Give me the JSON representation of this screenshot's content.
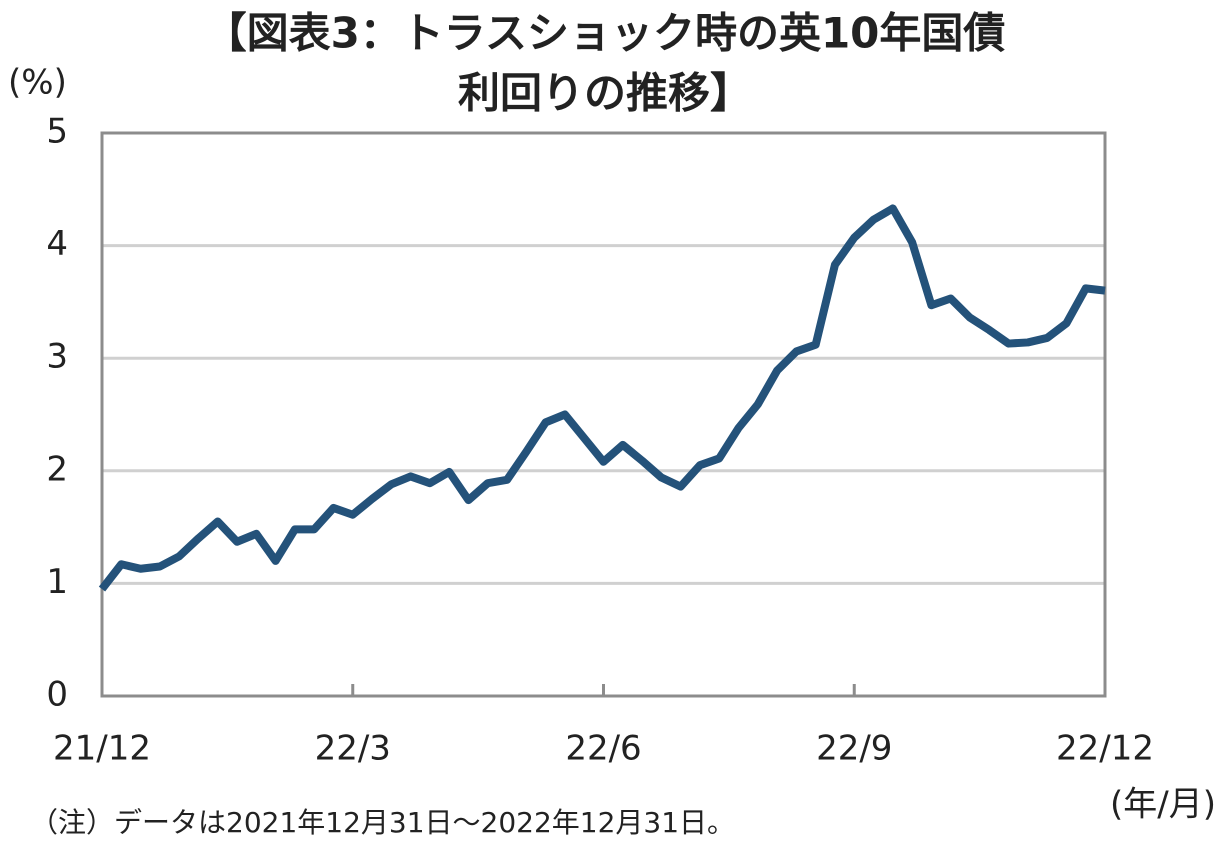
{
  "chart_data": {
    "type": "line",
    "title": [
      "【図表3：トラスショック時の英10年国債",
      "利回りの推移】"
    ],
    "y_label": "(%)",
    "x_label": "(年/月)",
    "note": "（注）データは2021年12月31日～2022年12月31日。",
    "categories": [
      "21/12",
      null,
      null,
      null,
      null,
      null,
      null,
      null,
      null,
      null,
      null,
      null,
      null,
      "22/3",
      null,
      null,
      null,
      null,
      null,
      null,
      null,
      null,
      null,
      null,
      null,
      null,
      "22/6",
      null,
      null,
      null,
      null,
      null,
      null,
      null,
      null,
      null,
      null,
      null,
      null,
      "22/9",
      null,
      null,
      null,
      null,
      null,
      null,
      null,
      null,
      null,
      null,
      null,
      null,
      "22/12"
    ],
    "series": [
      {
        "color": "#24527a",
        "values": [
          0.95,
          1.17,
          1.13,
          1.15,
          1.24,
          1.4,
          1.55,
          1.37,
          1.44,
          1.2,
          1.48,
          1.48,
          1.67,
          1.61,
          1.75,
          1.88,
          1.95,
          1.89,
          1.99,
          1.74,
          1.89,
          1.92,
          2.17,
          2.43,
          2.5,
          2.29,
          2.08,
          2.23,
          2.09,
          1.94,
          1.86,
          2.05,
          2.11,
          2.38,
          2.59,
          2.89,
          3.06,
          3.12,
          3.83,
          4.07,
          4.23,
          4.33,
          4.03,
          3.47,
          3.53,
          3.36,
          3.25,
          3.13,
          3.14,
          3.18,
          3.31,
          3.62,
          3.6
        ]
      }
    ],
    "ylim": [
      0,
      5
    ],
    "yticks": [
      0,
      1,
      2,
      3,
      4,
      5
    ],
    "grid": true
  }
}
